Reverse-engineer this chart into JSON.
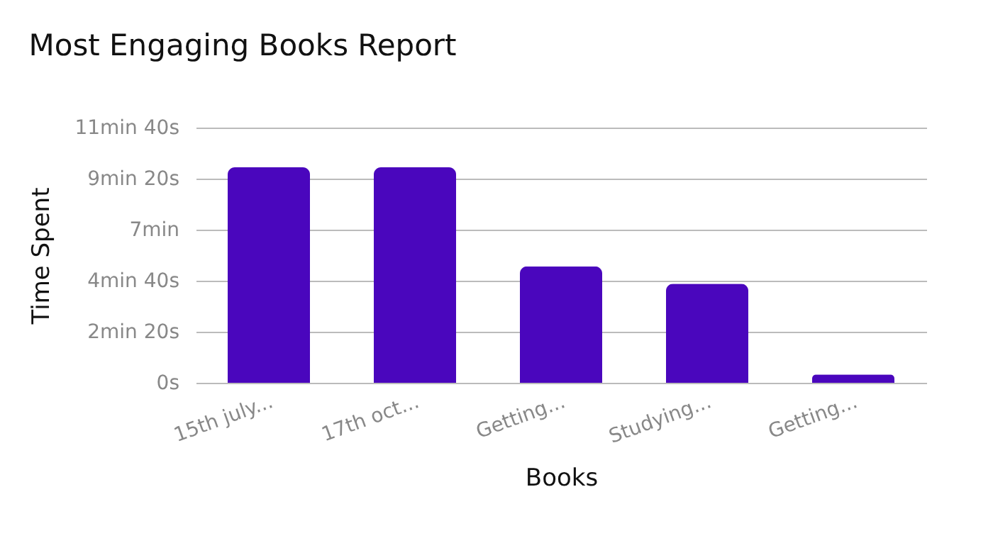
{
  "chart_data": {
    "type": "bar",
    "title": "Most Engaging Books Report",
    "xlabel": "Books",
    "ylabel": "Time Spent",
    "categories": [
      "15th july...",
      "17th oct...",
      "Getting...",
      "Studying...",
      "Getting..."
    ],
    "values": [
      9.85,
      9.85,
      5.32,
      4.53,
      0.38
    ],
    "color": "#4a06bd",
    "ylim": [
      0,
      11.6667
    ],
    "yticks": [
      {
        "value": 0,
        "label": "0s"
      },
      {
        "value": 2.3333,
        "label": "2min 20s"
      },
      {
        "value": 4.6667,
        "label": "4min 40s"
      },
      {
        "value": 7,
        "label": "7min"
      },
      {
        "value": 9.3333,
        "label": "9min 20s"
      },
      {
        "value": 11.6667,
        "label": "11min 40s"
      }
    ],
    "grid": "y"
  }
}
